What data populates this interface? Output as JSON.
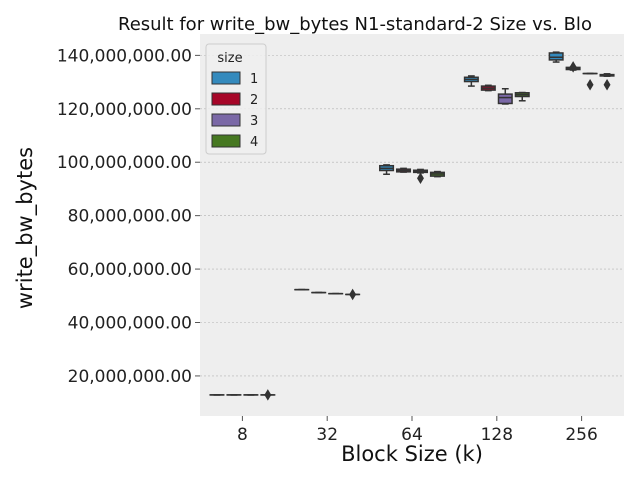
{
  "chart_data": {
    "type": "box",
    "title": "Result for write_bw_bytes N1-standard-2 Size vs. Blo",
    "xlabel": "Block Size (k)",
    "ylabel": "write_bw_bytes",
    "categories": [
      "8",
      "32",
      "64",
      "128",
      "256"
    ],
    "ylim": [
      5000000,
      148000000
    ],
    "yticks": [
      20000000,
      40000000,
      60000000,
      80000000,
      100000000,
      120000000,
      140000000
    ],
    "ytick_labels": [
      "20,000,000.00",
      "40,000,000.00",
      "60,000,000.00",
      "80,000,000.00",
      "100,000,000.00",
      "120,000,000.00",
      "140,000,000.00"
    ],
    "grid": true,
    "legend": {
      "title": "size",
      "position": "top-left",
      "entries": [
        {
          "name": "1",
          "color": "#348abd"
        },
        {
          "name": "2",
          "color": "#a60628"
        },
        {
          "name": "3",
          "color": "#7a68a6"
        },
        {
          "name": "4",
          "color": "#467821"
        }
      ]
    },
    "series": [
      {
        "name": "1",
        "color": "#348abd",
        "boxes": [
          {
            "category": "8",
            "whislo": 12900000,
            "q1": 12900000,
            "median": 12900000,
            "q3": 12900000,
            "whishi": 12900000,
            "fliers": []
          },
          {
            "category": "32",
            "whislo": 52300000,
            "q1": 52300000,
            "median": 52300000,
            "q3": 52300000,
            "whishi": 52300000,
            "fliers": []
          },
          {
            "category": "64",
            "whislo": 95500000,
            "q1": 96900000,
            "median": 97700000,
            "q3": 98700000,
            "whishi": 99000000,
            "fliers": []
          },
          {
            "category": "128",
            "whislo": 128500000,
            "q1": 130200000,
            "median": 131000000,
            "q3": 131800000,
            "whishi": 132300000,
            "fliers": []
          },
          {
            "category": "256",
            "whislo": 137500000,
            "q1": 138300000,
            "median": 139300000,
            "q3": 140900000,
            "whishi": 141200000,
            "fliers": []
          }
        ]
      },
      {
        "name": "2",
        "color": "#a60628",
        "boxes": [
          {
            "category": "8",
            "whislo": 12900000,
            "q1": 12900000,
            "median": 12900000,
            "q3": 12900000,
            "whishi": 12900000,
            "fliers": []
          },
          {
            "category": "32",
            "whislo": 51200000,
            "q1": 51200000,
            "median": 51200000,
            "q3": 51200000,
            "whishi": 51200000,
            "fliers": []
          },
          {
            "category": "64",
            "whislo": 96300000,
            "q1": 96400000,
            "median": 96900000,
            "q3": 97400000,
            "whishi": 97700000,
            "fliers": []
          },
          {
            "category": "128",
            "whislo": 126800000,
            "q1": 127000000,
            "median": 127700000,
            "q3": 128500000,
            "whishi": 128800000,
            "fliers": []
          },
          {
            "category": "256",
            "whislo": 134500000,
            "q1": 134700000,
            "median": 135000000,
            "q3": 135500000,
            "whishi": 135600000,
            "fliers": [
              135700000
            ]
          }
        ]
      },
      {
        "name": "3",
        "color": "#7a68a6",
        "boxes": [
          {
            "category": "8",
            "whislo": 12900000,
            "q1": 12900000,
            "median": 12900000,
            "q3": 12900000,
            "whishi": 12900000,
            "fliers": []
          },
          {
            "category": "32",
            "whislo": 50800000,
            "q1": 50800000,
            "median": 50800000,
            "q3": 50800000,
            "whishi": 50800000,
            "fliers": []
          },
          {
            "category": "64",
            "whislo": 96000000,
            "q1": 96200000,
            "median": 96600000,
            "q3": 97000000,
            "whishi": 97300000,
            "fliers": [
              94000000
            ]
          },
          {
            "category": "128",
            "whislo": 121800000,
            "q1": 122000000,
            "median": 124200000,
            "q3": 125500000,
            "whishi": 127500000,
            "fliers": []
          },
          {
            "category": "256",
            "whislo": 133200000,
            "q1": 133200000,
            "median": 133200000,
            "q3": 133200000,
            "whishi": 133200000,
            "fliers": [
              129000000
            ]
          }
        ]
      },
      {
        "name": "4",
        "color": "#467821",
        "boxes": [
          {
            "category": "8",
            "whislo": 12900000,
            "q1": 12900000,
            "median": 12900000,
            "q3": 12900000,
            "whishi": 12900000,
            "fliers": [
              12900000
            ]
          },
          {
            "category": "32",
            "whislo": 50500000,
            "q1": 50500000,
            "median": 50500000,
            "q3": 50500000,
            "whishi": 50500000,
            "fliers": [
              50500000
            ]
          },
          {
            "category": "64",
            "whislo": 94600000,
            "q1": 94800000,
            "median": 95600000,
            "q3": 96200000,
            "whishi": 96500000,
            "fliers": []
          },
          {
            "category": "128",
            "whislo": 123000000,
            "q1": 124600000,
            "median": 125300000,
            "q3": 126000000,
            "whishi": 126100000,
            "fliers": []
          },
          {
            "category": "256",
            "whislo": 132200000,
            "q1": 132300000,
            "median": 132500000,
            "q3": 132800000,
            "whishi": 133100000,
            "fliers": [
              129000000
            ]
          }
        ]
      }
    ]
  }
}
